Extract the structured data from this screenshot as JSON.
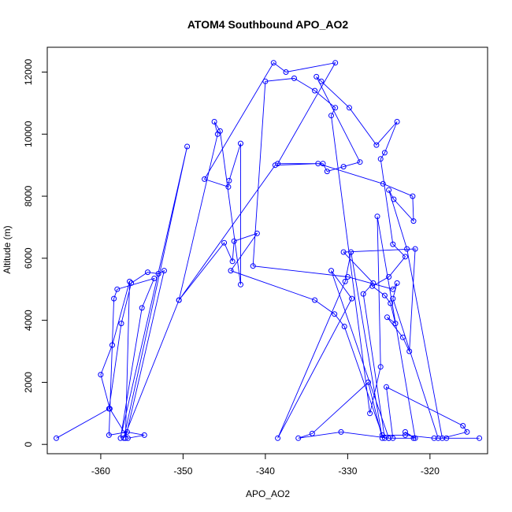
{
  "chart_data": {
    "type": "scatter",
    "title": "ATOM4 Southbound APO_AO2",
    "xlabel": "APO_AO2",
    "ylabel": "Altitude (m)",
    "xlim": [
      -366.5,
      -313
    ],
    "ylim": [
      -300,
      12800
    ],
    "xticks": [
      -360,
      -350,
      -340,
      -330,
      -320
    ],
    "yticks": [
      0,
      2000,
      4000,
      6000,
      8000,
      10000,
      12000
    ],
    "series_color": "#0000ff",
    "markers": "open-circle",
    "connected": true,
    "series": [
      {
        "name": "",
        "x": [
          -365.4,
          -359.0,
          -357.5,
          -356.3,
          -354.3,
          -353.0,
          -352.3,
          -357.0,
          -356.5,
          -358.6,
          -360.0,
          -358.9,
          -356.7,
          -354.7,
          -356.8,
          -359.0,
          -358.4,
          -358.0,
          -353.5,
          -355.0,
          -357.6,
          -349.5,
          -357.2,
          -350.5,
          -345.8,
          -346.2,
          -345.5,
          -343.0,
          -343.0,
          -344.4,
          -344.5,
          -347.4,
          -339.0,
          -337.5,
          -331.5,
          -338.5,
          -333.0,
          -332.5,
          -330.5,
          -328.5,
          -333.8,
          -333.2,
          -329.8,
          -326.5,
          -324.0,
          -325.5,
          -326.0,
          -324.5,
          -323.0,
          -325.0,
          -327.0,
          -325.5,
          -324.8,
          -324.2,
          -325.2,
          -323.3,
          -322.5,
          -321.8,
          -330.5,
          -326.9,
          -328.1,
          -325.5,
          -325.0,
          -330.8,
          -336.0,
          -334.3,
          -327.5,
          -325.8,
          -329.6,
          -330.3,
          -338.5,
          -329.5,
          -332.0,
          -325.0,
          -322.0,
          -323.0,
          -321.8,
          -326.4,
          -326.0,
          -327.3,
          -332.0,
          -331.5,
          -334.0,
          -336.5,
          -340.0,
          -341.5,
          -330.0,
          -324.5,
          -324.0,
          -324.5,
          -319.0,
          -314.0,
          -318.0,
          -319.5,
          -323.0,
          -325.8,
          -330.4,
          -331.6,
          -334.0,
          -344.2,
          -341.0,
          -343.8,
          -344.0,
          -345.0,
          -350.5,
          -338.8,
          -333.6,
          -325.7,
          -322.1,
          -322.0,
          -324.4,
          -325.0,
          -322.8,
          -318.5,
          -315.5,
          -316.0,
          -325.3,
          -324.5
        ],
        "y": [
          200,
          1150,
          3900,
          5200,
          5550,
          5500,
          5600,
          200,
          5250,
          3200,
          2250,
          1150,
          200,
          300,
          400,
          300,
          4700,
          5000,
          5350,
          4400,
          200,
          9600,
          200,
          4650,
          10000,
          10400,
          10100,
          5150,
          9700,
          8500,
          8300,
          8550,
          12300,
          12000,
          12300,
          9050,
          9050,
          8800,
          8950,
          9100,
          11850,
          11700,
          10850,
          9650,
          10400,
          9400,
          9200,
          6450,
          6050,
          5400,
          5100,
          4800,
          4550,
          3900,
          4100,
          3450,
          3000,
          6300,
          6200,
          5200,
          4850,
          200,
          200,
          400,
          200,
          350,
          2000,
          200,
          6200,
          5250,
          200,
          4700,
          5600,
          200,
          200,
          400,
          200,
          7350,
          2500,
          1000,
          10600,
          10850,
          11400,
          11800,
          11700,
          5750,
          5400,
          5000,
          5200,
          4700,
          200,
          200,
          200,
          200,
          300,
          300,
          3800,
          4200,
          4650,
          5600,
          6800,
          6550,
          5900,
          6500,
          4650,
          9000,
          9050,
          8400,
          8000,
          7200,
          7900,
          8200,
          6300,
          200,
          400,
          600,
          1850,
          200
        ]
      }
    ]
  }
}
